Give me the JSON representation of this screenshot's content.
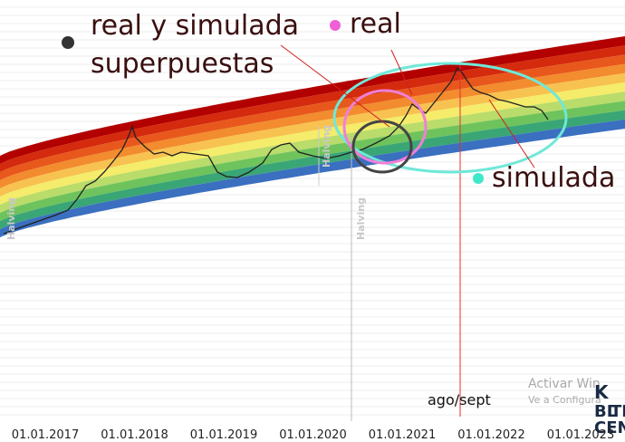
{
  "chart_data": {
    "type": "line",
    "categories": [
      "01.01.2017",
      "01.01.2018",
      "01.01.2019",
      "01.01.2020",
      "01.01.2021",
      "01.01.2022",
      "01.01.2023"
    ],
    "halving_labels": [
      "Halving",
      "Halving",
      "Halving"
    ],
    "annotations": {
      "overlay": [
        "real y simulada",
        "superpuestas"
      ],
      "real": "real",
      "simulated": "simulada",
      "marker": "ago/sept"
    },
    "watermark": [
      "Activar Win",
      "Ve a Configura"
    ],
    "logo": [
      "BL",
      "TE",
      "CEN",
      "K"
    ]
  }
}
